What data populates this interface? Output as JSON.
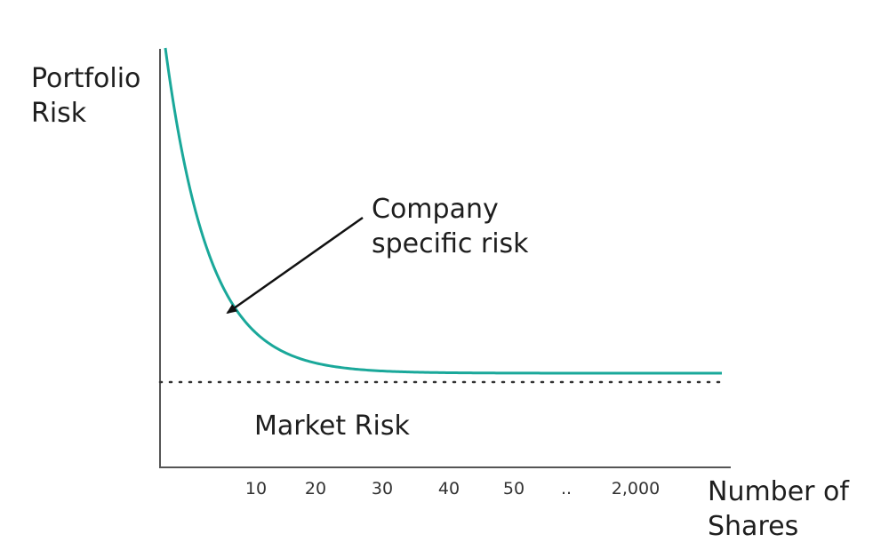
{
  "chart_data": {
    "type": "line",
    "title": "",
    "ylabel_lines": [
      "Portfolio",
      "Risk"
    ],
    "xlabel_lines": [
      "Number of",
      "Shares"
    ],
    "tick_labels": [
      "10",
      "20",
      "30",
      "40",
      "50",
      "..",
      "2,000"
    ],
    "series": [
      {
        "curve": "decay",
        "color": "#1aa89a"
      }
    ],
    "reference_line": {
      "label": "Market Risk",
      "style": "dotted",
      "color": "#333333"
    },
    "annotation": {
      "lines": [
        "Company",
        "specific risk"
      ],
      "arrow": true
    },
    "grid": false,
    "legend": "none"
  }
}
